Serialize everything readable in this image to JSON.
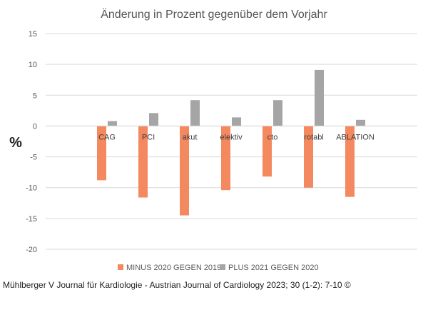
{
  "chart_data": {
    "type": "bar",
    "title": "Änderung in Prozent gegenüber dem Vorjahr",
    "ylabel": "%",
    "xlabel": "",
    "ylim": [
      -20,
      15
    ],
    "yticks": [
      15,
      10,
      5,
      0,
      -5,
      -10,
      -15,
      -20
    ],
    "ytick_labels": [
      "15",
      "10",
      "5",
      "0",
      "-5",
      "-10",
      "-15",
      "-20"
    ],
    "grid": true,
    "legend_position": "bottom",
    "categories": [
      "CAG",
      "PCI",
      "akut",
      "elektiv",
      "cto",
      "rotabl",
      "ABLATION"
    ],
    "series": [
      {
        "name": "MINUS 2020 GEGEN 2019",
        "color": "#F4895F",
        "values": [
          -8.8,
          -11.6,
          -14.5,
          -10.4,
          -8.2,
          -10.0,
          -11.5
        ]
      },
      {
        "name": "PLUS 2021 GEGEN 2020",
        "color": "#A5A5A5",
        "values": [
          0.8,
          2.1,
          4.2,
          1.4,
          4.2,
          9.1,
          1.0
        ]
      }
    ]
  },
  "footer": {
    "citation": "Mühlberger V Journal für Kardiologie - Austrian Journal of Cardiology 2023; 30 (1-2): 7-10 ©"
  }
}
